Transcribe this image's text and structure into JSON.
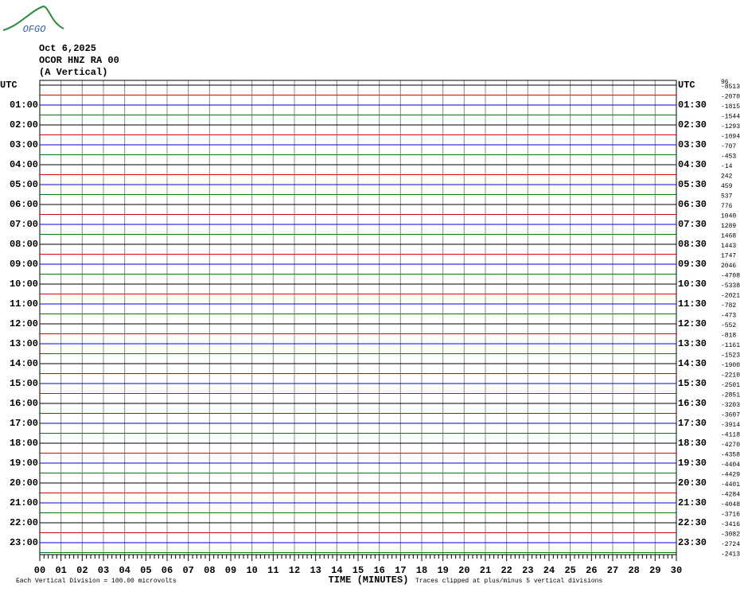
{
  "logo": "OFGO",
  "header": {
    "date": "Oct 6,2025",
    "station": "OCOR HNZ RA 00",
    "component": "(A Vertical)"
  },
  "left_labels": [
    "UTC",
    "01:00",
    "02:00",
    "03:00",
    "04:00",
    "05:00",
    "06:00",
    "07:00",
    "08:00",
    "09:00",
    "10:00",
    "11:00",
    "12:00",
    "13:00",
    "14:00",
    "15:00",
    "16:00",
    "17:00",
    "18:00",
    "19:00",
    "20:00",
    "21:00",
    "22:00",
    "23:00"
  ],
  "right_labels": [
    "UTC",
    "01:30",
    "02:30",
    "03:30",
    "04:30",
    "05:30",
    "06:30",
    "07:30",
    "08:30",
    "09:30",
    "10:30",
    "11:30",
    "12:30",
    "13:30",
    "14:30",
    "15:30",
    "16:30",
    "17:30",
    "18:30",
    "19:30",
    "20:30",
    "21:30",
    "22:30",
    "23:30"
  ],
  "top_right": "96",
  "offsets": [
    "-8513",
    "-2070",
    "-1815",
    "-1544",
    "-1293",
    "-1094",
    "-707",
    "-453",
    "-14",
    "242",
    "459",
    "537",
    "776",
    "1040",
    "1289",
    "1468",
    "1443",
    "1747",
    "2046",
    "-4708",
    "-5338",
    "-2021",
    "-782",
    "-473",
    "-552",
    "-818",
    "-1161",
    "-1523",
    "-1900",
    "-2210",
    "-2501",
    "-2851",
    "-3203",
    "-3607",
    "-3914",
    "-4118",
    "-4270",
    "-4358",
    "-4404",
    "-4429",
    "-4401",
    "-4284",
    "-4048",
    "-3716",
    "-3416",
    "-3082",
    "-2724",
    "-2413"
  ],
  "x_axis": {
    "ticks": [
      "00",
      "01",
      "02",
      "03",
      "04",
      "05",
      "06",
      "07",
      "08",
      "09",
      "10",
      "11",
      "12",
      "13",
      "14",
      "15",
      "16",
      "17",
      "18",
      "19",
      "20",
      "21",
      "22",
      "23",
      "24",
      "25",
      "26",
      "27",
      "28",
      "29",
      "30"
    ],
    "title": "TIME (MINUTES)"
  },
  "footer": {
    "scale": "Each Vertical Division =  100.00 microvolts",
    "clip": "Traces clipped at plus/minus 5 vertical divisions"
  },
  "trace_colors": [
    "#000000",
    "#dd0000",
    "#0000dd",
    "#007700"
  ]
}
